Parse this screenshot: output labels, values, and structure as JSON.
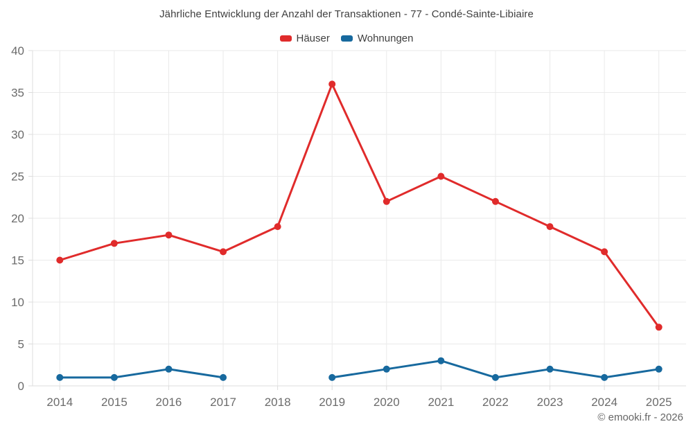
{
  "page": {
    "footer_credit": "© emooki.fr - 2026",
    "background_color": "#ffffff"
  },
  "chart_data": {
    "type": "line",
    "title": "Jährliche Entwicklung der Anzahl der Transaktionen - 77 - Condé-Sainte-Libiaire",
    "categories": [
      "2014",
      "2015",
      "2016",
      "2017",
      "2018",
      "2019",
      "2020",
      "2021",
      "2022",
      "2023",
      "2024",
      "2025"
    ],
    "series": [
      {
        "name": "Häuser",
        "color": "#e02b2b",
        "values": [
          15,
          17,
          18,
          16,
          19,
          36,
          22,
          25,
          22,
          19,
          16,
          7
        ]
      },
      {
        "name": "Wohnungen",
        "color": "#17699e",
        "values": [
          1,
          1,
          2,
          1,
          null,
          1,
          2,
          3,
          1,
          2,
          1,
          2
        ]
      }
    ],
    "xlabel": "",
    "ylabel": "",
    "ylim": [
      0,
      40
    ],
    "yticks": [
      0,
      5,
      10,
      15,
      20,
      25,
      30,
      35,
      40
    ],
    "grid": true,
    "legend_position": "top",
    "colors": {
      "grid_line": "#eaeaea",
      "axis_line": "#dcdcdc",
      "tick_label": "#6b6b6b",
      "title_text": "#3f3f3f"
    }
  }
}
